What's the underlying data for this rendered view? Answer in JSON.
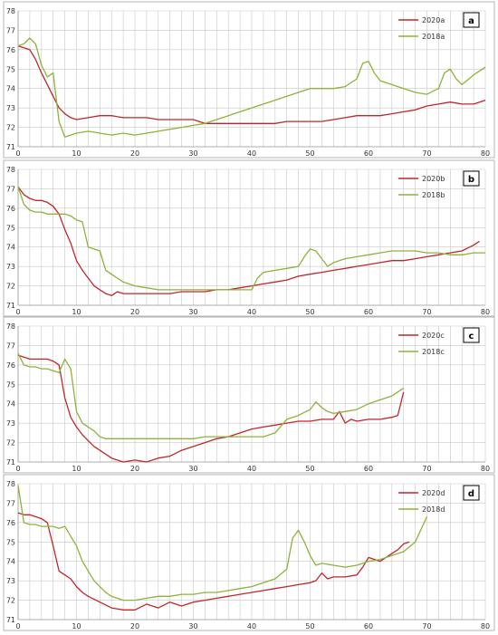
{
  "chart_data": [
    {
      "type": "line",
      "panel_label": "a",
      "xlim": [
        0,
        80
      ],
      "ylim": [
        71,
        78
      ],
      "xticks": [
        0,
        10,
        20,
        30,
        40,
        50,
        60,
        70,
        80
      ],
      "yticks": [
        71,
        72,
        73,
        74,
        75,
        76,
        77,
        78
      ],
      "grid": true,
      "legend_position": "top-right",
      "series": [
        {
          "name": "2020a",
          "color": "#c0272d",
          "x": [
            0,
            1,
            2,
            3,
            4,
            5,
            6,
            7,
            8,
            9,
            10,
            12,
            14,
            16,
            18,
            20,
            22,
            24,
            26,
            28,
            30,
            32,
            34,
            36,
            38,
            40,
            42,
            44,
            46,
            48,
            50,
            52,
            54,
            56,
            58,
            60,
            62,
            64,
            66,
            68,
            70,
            72,
            74,
            76,
            78,
            80
          ],
          "y": [
            76.2,
            76.1,
            76.0,
            75.5,
            74.8,
            74.2,
            73.6,
            73.0,
            72.7,
            72.5,
            72.4,
            72.5,
            72.6,
            72.6,
            72.5,
            72.5,
            72.5,
            72.4,
            72.4,
            72.4,
            72.4,
            72.2,
            72.2,
            72.2,
            72.2,
            72.2,
            72.2,
            72.2,
            72.3,
            72.3,
            72.3,
            72.3,
            72.4,
            72.5,
            72.6,
            72.6,
            72.6,
            72.7,
            72.8,
            72.9,
            73.1,
            73.2,
            73.3,
            73.2,
            73.2,
            73.4
          ]
        },
        {
          "name": "2018a",
          "color": "#8db33a",
          "x": [
            0,
            1,
            2,
            3,
            4,
            5,
            6,
            7,
            8,
            9,
            10,
            12,
            14,
            16,
            18,
            20,
            22,
            24,
            26,
            28,
            30,
            32,
            34,
            36,
            38,
            40,
            42,
            44,
            46,
            48,
            50,
            52,
            54,
            56,
            58,
            59,
            60,
            61,
            62,
            64,
            66,
            68,
            70,
            72,
            73,
            74,
            75,
            76,
            78,
            80
          ],
          "y": [
            76.2,
            76.3,
            76.6,
            76.3,
            75.2,
            74.6,
            74.8,
            72.3,
            71.5,
            71.6,
            71.7,
            71.8,
            71.7,
            71.6,
            71.7,
            71.6,
            71.7,
            71.8,
            71.9,
            72.0,
            72.1,
            72.2,
            72.4,
            72.6,
            72.8,
            73.0,
            73.2,
            73.4,
            73.6,
            73.8,
            74.0,
            74.0,
            74.0,
            74.1,
            74.5,
            75.3,
            75.4,
            74.8,
            74.4,
            74.2,
            74.0,
            73.8,
            73.7,
            74.0,
            74.8,
            75.0,
            74.5,
            74.2,
            74.7,
            75.1
          ]
        }
      ]
    },
    {
      "type": "line",
      "panel_label": "b",
      "xlim": [
        0,
        80
      ],
      "ylim": [
        71,
        78
      ],
      "xticks": [
        0,
        10,
        20,
        30,
        40,
        50,
        60,
        70,
        80
      ],
      "yticks": [
        71,
        72,
        73,
        74,
        75,
        76,
        77,
        78
      ],
      "grid": true,
      "legend_position": "top-right",
      "series": [
        {
          "name": "2020b",
          "color": "#c0272d",
          "x": [
            0,
            1,
            2,
            3,
            4,
            5,
            6,
            7,
            8,
            9,
            10,
            11,
            12,
            13,
            14,
            15,
            16,
            17,
            18,
            20,
            22,
            24,
            26,
            28,
            30,
            32,
            34,
            36,
            38,
            40,
            42,
            44,
            46,
            48,
            50,
            52,
            54,
            56,
            58,
            60,
            62,
            64,
            66,
            68,
            70,
            72,
            74,
            76,
            78,
            79
          ],
          "y": [
            77.1,
            76.7,
            76.5,
            76.4,
            76.4,
            76.3,
            76.1,
            75.7,
            74.9,
            74.2,
            73.3,
            72.8,
            72.4,
            72.0,
            71.8,
            71.6,
            71.5,
            71.7,
            71.6,
            71.6,
            71.6,
            71.6,
            71.6,
            71.7,
            71.7,
            71.7,
            71.8,
            71.8,
            71.9,
            72.0,
            72.1,
            72.2,
            72.3,
            72.5,
            72.6,
            72.7,
            72.8,
            72.9,
            73.0,
            73.1,
            73.2,
            73.3,
            73.3,
            73.4,
            73.5,
            73.6,
            73.7,
            73.8,
            74.1,
            74.3
          ]
        },
        {
          "name": "2018b",
          "color": "#8db33a",
          "x": [
            0,
            1,
            2,
            3,
            4,
            5,
            6,
            7,
            8,
            9,
            10,
            11,
            12,
            13,
            14,
            15,
            16,
            17,
            18,
            20,
            22,
            24,
            26,
            28,
            30,
            32,
            34,
            36,
            38,
            40,
            41,
            42,
            44,
            46,
            48,
            49,
            50,
            51,
            52,
            53,
            54,
            56,
            58,
            60,
            62,
            64,
            66,
            68,
            70,
            72,
            74,
            76,
            78,
            80
          ],
          "y": [
            77.1,
            76.2,
            75.9,
            75.8,
            75.8,
            75.7,
            75.7,
            75.7,
            75.7,
            75.6,
            75.4,
            75.3,
            74.0,
            73.9,
            73.8,
            72.8,
            72.6,
            72.4,
            72.2,
            72.0,
            71.9,
            71.8,
            71.8,
            71.8,
            71.8,
            71.8,
            71.8,
            71.8,
            71.8,
            71.8,
            72.4,
            72.7,
            72.8,
            72.9,
            73.0,
            73.5,
            73.9,
            73.8,
            73.4,
            73.0,
            73.2,
            73.4,
            73.5,
            73.6,
            73.7,
            73.8,
            73.8,
            73.8,
            73.7,
            73.7,
            73.6,
            73.6,
            73.7,
            73.7
          ]
        }
      ]
    },
    {
      "type": "line",
      "panel_label": "c",
      "xlim": [
        0,
        80
      ],
      "ylim": [
        71,
        78
      ],
      "xticks": [
        0,
        10,
        20,
        30,
        40,
        50,
        60,
        70,
        80
      ],
      "yticks": [
        71,
        72,
        73,
        74,
        75,
        76,
        77,
        78
      ],
      "grid": true,
      "legend_position": "top-right",
      "series": [
        {
          "name": "2020c",
          "color": "#c0272d",
          "x": [
            0,
            1,
            2,
            3,
            4,
            5,
            6,
            7,
            8,
            9,
            10,
            11,
            12,
            13,
            14,
            15,
            16,
            17,
            18,
            20,
            22,
            24,
            26,
            28,
            30,
            32,
            34,
            36,
            38,
            40,
            42,
            44,
            46,
            48,
            50,
            52,
            54,
            55,
            56,
            57,
            58,
            60,
            62,
            64,
            65,
            66
          ],
          "y": [
            76.5,
            76.4,
            76.3,
            76.3,
            76.3,
            76.3,
            76.2,
            76.0,
            74.3,
            73.3,
            72.8,
            72.4,
            72.1,
            71.8,
            71.6,
            71.4,
            71.2,
            71.1,
            71.0,
            71.1,
            71.0,
            71.2,
            71.3,
            71.6,
            71.8,
            72.0,
            72.2,
            72.3,
            72.5,
            72.7,
            72.8,
            72.9,
            73.0,
            73.1,
            73.1,
            73.2,
            73.2,
            73.6,
            73.0,
            73.2,
            73.1,
            73.2,
            73.2,
            73.3,
            73.4,
            74.6
          ]
        },
        {
          "name": "2018c",
          "color": "#8db33a",
          "x": [
            0,
            1,
            2,
            3,
            4,
            5,
            6,
            7,
            8,
            9,
            10,
            11,
            12,
            13,
            14,
            15,
            16,
            18,
            20,
            22,
            24,
            26,
            28,
            30,
            32,
            34,
            36,
            38,
            40,
            42,
            44,
            46,
            48,
            50,
            51,
            52,
            53,
            54,
            56,
            58,
            60,
            62,
            64,
            66
          ],
          "y": [
            76.6,
            76.0,
            75.9,
            75.9,
            75.8,
            75.8,
            75.7,
            75.6,
            76.3,
            75.8,
            73.6,
            73.0,
            72.8,
            72.6,
            72.3,
            72.2,
            72.2,
            72.2,
            72.2,
            72.2,
            72.2,
            72.2,
            72.2,
            72.2,
            72.3,
            72.3,
            72.3,
            72.3,
            72.3,
            72.3,
            72.5,
            73.2,
            73.4,
            73.7,
            74.1,
            73.8,
            73.6,
            73.5,
            73.6,
            73.7,
            74.0,
            74.2,
            74.4,
            74.8
          ]
        }
      ]
    },
    {
      "type": "line",
      "panel_label": "d",
      "xlim": [
        0,
        80
      ],
      "ylim": [
        71,
        78
      ],
      "xticks": [
        0,
        10,
        20,
        30,
        40,
        50,
        60,
        70,
        80
      ],
      "yticks": [
        71,
        72,
        73,
        74,
        75,
        76,
        77,
        78
      ],
      "grid": true,
      "legend_position": "top-right",
      "series": [
        {
          "name": "2020d",
          "color": "#c0272d",
          "x": [
            0,
            1,
            2,
            3,
            4,
            5,
            6,
            7,
            8,
            9,
            10,
            11,
            12,
            14,
            16,
            18,
            20,
            22,
            24,
            26,
            28,
            30,
            32,
            34,
            36,
            38,
            40,
            42,
            44,
            46,
            48,
            50,
            51,
            52,
            53,
            54,
            56,
            58,
            59,
            60,
            62,
            64,
            65,
            66,
            67
          ],
          "y": [
            76.5,
            76.4,
            76.4,
            76.3,
            76.2,
            76.0,
            74.8,
            73.5,
            73.3,
            73.1,
            72.7,
            72.4,
            72.2,
            71.9,
            71.6,
            71.5,
            71.5,
            71.8,
            71.6,
            71.9,
            71.7,
            71.9,
            72.0,
            72.1,
            72.2,
            72.3,
            72.4,
            72.5,
            72.6,
            72.7,
            72.8,
            72.9,
            73.0,
            73.4,
            73.1,
            73.2,
            73.2,
            73.3,
            73.7,
            74.2,
            74.0,
            74.4,
            74.6,
            74.9,
            75.0
          ]
        },
        {
          "name": "2018d",
          "color": "#8db33a",
          "x": [
            0,
            1,
            2,
            3,
            4,
            5,
            6,
            7,
            8,
            9,
            10,
            11,
            12,
            13,
            14,
            15,
            16,
            18,
            20,
            22,
            24,
            26,
            28,
            30,
            32,
            34,
            36,
            38,
            40,
            42,
            44,
            46,
            47,
            48,
            49,
            50,
            51,
            52,
            54,
            56,
            58,
            60,
            62,
            64,
            66,
            68,
            70
          ],
          "y": [
            77.9,
            76.0,
            75.9,
            75.9,
            75.8,
            75.8,
            75.8,
            75.7,
            75.8,
            75.3,
            74.8,
            74.0,
            73.5,
            73.0,
            72.7,
            72.4,
            72.2,
            72.0,
            72.0,
            72.1,
            72.2,
            72.2,
            72.3,
            72.3,
            72.4,
            72.4,
            72.5,
            72.6,
            72.7,
            72.9,
            73.1,
            73.6,
            75.2,
            75.6,
            75.0,
            74.3,
            73.8,
            73.9,
            73.8,
            73.7,
            73.8,
            74.0,
            74.1,
            74.3,
            74.5,
            75.0,
            76.3
          ]
        }
      ]
    }
  ]
}
